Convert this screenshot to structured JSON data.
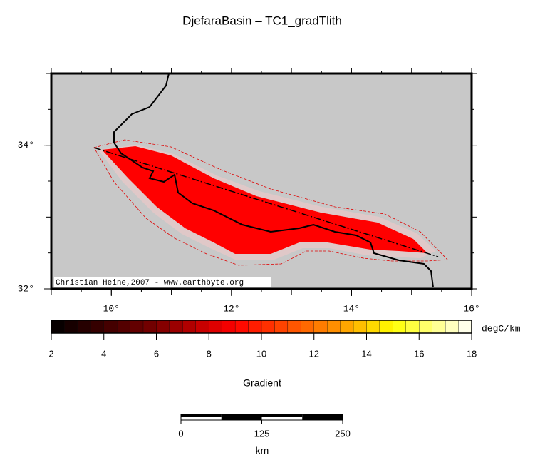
{
  "title": "DjefaraBasin – TC1_gradTlith",
  "map": {
    "lonlim": [
      9,
      16
    ],
    "latlim": [
      32,
      35
    ],
    "lon_ticks": [
      {
        "value": 10,
        "label": "10°"
      },
      {
        "value": 12,
        "label": "12°"
      },
      {
        "value": 14,
        "label": "14°"
      },
      {
        "value": 16,
        "label": "16°"
      }
    ],
    "lat_ticks": [
      {
        "value": 32,
        "label": "32°"
      },
      {
        "value": 34,
        "label": "34°"
      }
    ],
    "credit": "Christian Heine,2007 - www.earthbyte.org"
  },
  "colorbar": {
    "range": [
      2,
      18
    ],
    "ticks": [
      2,
      4,
      6,
      8,
      10,
      12,
      14,
      16,
      18
    ],
    "unit": "degC/km",
    "label": "Gradient",
    "colormap": [
      [
        2,
        "#000000"
      ],
      [
        6,
        "#7a0000"
      ],
      [
        9,
        "#ff0000"
      ],
      [
        13,
        "#ff9900"
      ],
      [
        15,
        "#ffff00"
      ],
      [
        18,
        "#ffffff"
      ]
    ]
  },
  "scalebar": {
    "ticks": [
      0,
      125,
      250
    ],
    "unit": "km"
  }
}
